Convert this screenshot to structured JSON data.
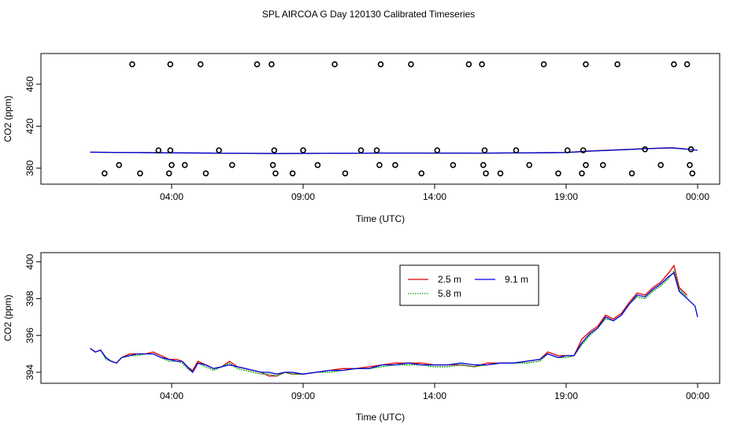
{
  "title": "SPL AIRCOA G  Day 120130  Calibrated Timeseries",
  "chart_data": [
    {
      "id": "top",
      "type": "scatter+line",
      "xlabel": "Time (UTC)",
      "ylabel": "CO2 (ppm)",
      "xlim": [
        0,
        24.5
      ],
      "ylim": [
        370,
        484
      ],
      "x_ticks": [
        {
          "value": 4,
          "label": "04:00"
        },
        {
          "value": 9,
          "label": "09:00"
        },
        {
          "value": 14,
          "label": "14:00"
        },
        {
          "value": 19,
          "label": "19:00"
        },
        {
          "value": 24,
          "label": "00:00"
        }
      ],
      "y_ticks": [
        {
          "value": 380,
          "label": "380"
        },
        {
          "value": 420,
          "label": "420"
        },
        {
          "value": 460,
          "label": "460"
        }
      ],
      "markers": {
        "name": "calibration points",
        "color": "#000000",
        "points": [
          [
            1.45,
            375
          ],
          [
            2.0,
            383
          ],
          [
            2.5,
            479
          ],
          [
            2.8,
            375
          ],
          [
            3.5,
            397
          ],
          [
            3.9,
            375
          ],
          [
            3.95,
            397
          ],
          [
            3.95,
            479
          ],
          [
            4.0,
            383
          ],
          [
            4.5,
            383
          ],
          [
            5.1,
            479
          ],
          [
            5.3,
            375
          ],
          [
            5.8,
            397
          ],
          [
            6.3,
            383
          ],
          [
            7.25,
            479
          ],
          [
            7.8,
            479
          ],
          [
            7.85,
            383
          ],
          [
            7.9,
            397
          ],
          [
            7.95,
            375
          ],
          [
            8.6,
            375
          ],
          [
            9.0,
            397
          ],
          [
            9.55,
            383
          ],
          [
            10.2,
            479
          ],
          [
            10.6,
            375
          ],
          [
            11.2,
            397
          ],
          [
            11.8,
            397
          ],
          [
            11.9,
            383
          ],
          [
            11.95,
            479
          ],
          [
            12.5,
            383
          ],
          [
            13.1,
            479
          ],
          [
            13.5,
            375
          ],
          [
            14.1,
            397
          ],
          [
            14.7,
            383
          ],
          [
            15.3,
            479
          ],
          [
            15.8,
            479
          ],
          [
            15.85,
            383
          ],
          [
            15.9,
            397
          ],
          [
            15.95,
            375
          ],
          [
            16.5,
            375
          ],
          [
            17.1,
            397
          ],
          [
            17.6,
            383
          ],
          [
            18.15,
            479
          ],
          [
            18.7,
            375
          ],
          [
            19.05,
            397
          ],
          [
            19.6,
            375
          ],
          [
            19.65,
            397
          ],
          [
            19.75,
            383
          ],
          [
            19.75,
            479
          ],
          [
            20.4,
            383
          ],
          [
            20.95,
            479
          ],
          [
            21.5,
            375
          ],
          [
            22.0,
            398
          ],
          [
            22.6,
            383
          ],
          [
            23.1,
            479
          ],
          [
            23.6,
            479
          ],
          [
            23.7,
            383
          ],
          [
            23.75,
            398
          ],
          [
            23.8,
            375
          ]
        ]
      },
      "series": [
        {
          "name": "2.5 m",
          "color": "#e00000",
          "x": [
            0.9,
            4,
            6,
            8,
            9,
            12,
            16,
            19,
            20,
            21,
            22,
            23,
            23.6
          ],
          "y": [
            395.2,
            394.6,
            394.2,
            393.9,
            394.0,
            394.4,
            394.3,
            394.9,
            396.5,
            397.5,
            398.6,
            399.5,
            398.2
          ]
        },
        {
          "name": "5.8 m",
          "color": "#00a000",
          "x": [
            0.9,
            4,
            6,
            8,
            9,
            12,
            16,
            19,
            20,
            21,
            22,
            23,
            23.6
          ],
          "y": [
            395.2,
            394.6,
            394.2,
            393.9,
            394.0,
            394.4,
            394.3,
            394.9,
            396.3,
            397.4,
            398.5,
            399.3,
            398.0
          ]
        },
        {
          "name": "9.1 m",
          "color": "#0000e0",
          "x": [
            0.9,
            4,
            6,
            8,
            9,
            12,
            16,
            19,
            20,
            21,
            22,
            23,
            23.6,
            24
          ],
          "y": [
            395.2,
            394.6,
            394.3,
            394.0,
            394.1,
            394.4,
            394.4,
            394.9,
            396.3,
            397.4,
            398.5,
            399.3,
            398.1,
            397.0
          ]
        }
      ]
    },
    {
      "id": "bottom",
      "type": "line",
      "xlabel": "Time (UTC)",
      "ylabel": "CO2 (ppm)",
      "xlim": [
        0,
        24.5
      ],
      "ylim": [
        393.7,
        400.2
      ],
      "x_ticks": [
        {
          "value": 4,
          "label": "04:00"
        },
        {
          "value": 9,
          "label": "09:00"
        },
        {
          "value": 14,
          "label": "14:00"
        },
        {
          "value": 19,
          "label": "19:00"
        },
        {
          "value": 24,
          "label": "00:00"
        }
      ],
      "y_ticks": [
        {
          "value": 394,
          "label": "394"
        },
        {
          "value": 396,
          "label": "396"
        },
        {
          "value": 398,
          "label": "398"
        },
        {
          "value": 400,
          "label": "400"
        }
      ],
      "legend": {
        "placement": "top-right",
        "entries": [
          {
            "label": "2.5 m",
            "color": "#e00000",
            "style": "solid"
          },
          {
            "label": "9.1 m",
            "color": "#0000e0",
            "style": "solid"
          },
          {
            "label": "5.8 m",
            "color": "#00a000",
            "style": "dotted"
          }
        ]
      },
      "series": [
        {
          "name": "2.5 m",
          "color": "#e00000",
          "x": [
            0.9,
            1.1,
            1.3,
            1.5,
            1.7,
            1.9,
            2.1,
            2.4,
            2.7,
            3.0,
            3.3,
            3.6,
            3.9,
            4.2,
            4.4,
            4.6,
            4.8,
            5.0,
            5.3,
            5.6,
            5.9,
            6.2,
            6.5,
            6.8,
            7.1,
            7.4,
            7.7,
            8.0,
            8.3,
            8.6,
            9.0,
            9.5,
            10.0,
            10.5,
            11.0,
            11.5,
            12.0,
            12.5,
            13.0,
            13.5,
            14.0,
            14.5,
            15.0,
            15.5,
            16.0,
            16.5,
            17.0,
            17.5,
            18.0,
            18.3,
            18.7,
            19.0,
            19.3,
            19.6,
            19.9,
            20.2,
            20.5,
            20.8,
            21.1,
            21.4,
            21.7,
            22.0,
            22.3,
            22.6,
            22.9,
            23.1,
            23.3,
            23.6
          ],
          "y": [
            395.3,
            395.1,
            395.2,
            394.8,
            394.6,
            394.5,
            394.8,
            395.0,
            395.0,
            395.0,
            395.1,
            394.9,
            394.7,
            394.7,
            394.6,
            394.3,
            394.1,
            394.6,
            394.4,
            394.2,
            394.3,
            394.6,
            394.3,
            394.2,
            394.1,
            394.0,
            393.8,
            393.8,
            394.0,
            393.9,
            393.9,
            394.0,
            394.1,
            394.2,
            394.2,
            394.3,
            394.4,
            394.5,
            394.5,
            394.5,
            394.4,
            394.4,
            394.4,
            394.3,
            394.5,
            394.5,
            394.5,
            394.6,
            394.7,
            395.1,
            394.9,
            394.9,
            394.9,
            395.8,
            396.2,
            396.5,
            397.1,
            396.9,
            397.2,
            397.8,
            398.3,
            398.2,
            398.6,
            398.9,
            399.4,
            399.8,
            398.6,
            398.2
          ]
        },
        {
          "name": "5.8 m",
          "color": "#00a000",
          "x": [
            0.9,
            1.1,
            1.3,
            1.5,
            1.7,
            1.9,
            2.1,
            2.4,
            2.7,
            3.0,
            3.3,
            3.6,
            3.9,
            4.2,
            4.4,
            4.6,
            4.8,
            5.0,
            5.3,
            5.6,
            5.9,
            6.2,
            6.5,
            6.8,
            7.1,
            7.4,
            7.7,
            8.0,
            8.3,
            8.6,
            9.0,
            9.5,
            10.0,
            10.5,
            11.0,
            11.5,
            12.0,
            12.5,
            13.0,
            13.5,
            14.0,
            14.5,
            15.0,
            15.5,
            16.0,
            16.5,
            17.0,
            17.5,
            18.0,
            18.3,
            18.7,
            19.0,
            19.3,
            19.6,
            19.9,
            20.2,
            20.5,
            20.8,
            21.1,
            21.4,
            21.7,
            22.0,
            22.3,
            22.6,
            22.9,
            23.1,
            23.3,
            23.6
          ],
          "y": [
            395.3,
            395.1,
            395.2,
            394.7,
            394.6,
            394.5,
            394.8,
            394.9,
            394.9,
            395.0,
            395.0,
            394.8,
            394.6,
            394.6,
            394.5,
            394.2,
            394.0,
            394.5,
            394.3,
            394.1,
            394.3,
            394.5,
            394.2,
            394.1,
            394.0,
            393.9,
            393.9,
            393.8,
            394.0,
            393.9,
            393.9,
            394.0,
            394.0,
            394.1,
            394.2,
            394.2,
            394.3,
            394.4,
            394.4,
            394.4,
            394.3,
            394.3,
            394.4,
            394.3,
            394.4,
            394.5,
            394.5,
            394.5,
            394.6,
            395.0,
            394.8,
            394.8,
            394.9,
            395.5,
            396.0,
            396.4,
            396.9,
            396.8,
            397.1,
            397.7,
            398.1,
            398.0,
            398.4,
            398.7,
            399.1,
            399.5,
            398.5,
            398.1
          ]
        },
        {
          "name": "9.1 m",
          "color": "#0000e0",
          "x": [
            0.9,
            1.1,
            1.3,
            1.5,
            1.7,
            1.9,
            2.1,
            2.4,
            2.7,
            3.0,
            3.3,
            3.6,
            3.9,
            4.2,
            4.4,
            4.6,
            4.8,
            5.0,
            5.3,
            5.6,
            5.9,
            6.2,
            6.5,
            6.8,
            7.1,
            7.4,
            7.7,
            8.0,
            8.3,
            8.6,
            9.0,
            9.5,
            10.0,
            10.5,
            11.0,
            11.5,
            12.0,
            12.5,
            13.0,
            13.5,
            14.0,
            14.5,
            15.0,
            15.5,
            16.0,
            16.5,
            17.0,
            17.5,
            18.0,
            18.3,
            18.7,
            19.0,
            19.3,
            19.6,
            19.9,
            20.2,
            20.5,
            20.8,
            21.1,
            21.4,
            21.7,
            22.0,
            22.3,
            22.6,
            22.9,
            23.1,
            23.3,
            23.6,
            23.9,
            24.0
          ],
          "y": [
            395.3,
            395.1,
            395.2,
            394.8,
            394.6,
            394.5,
            394.8,
            394.9,
            395.0,
            395.0,
            395.0,
            394.8,
            394.7,
            394.6,
            394.6,
            394.3,
            394.0,
            394.5,
            394.4,
            394.2,
            394.3,
            394.4,
            394.3,
            394.2,
            394.1,
            394.0,
            394.0,
            393.9,
            394.0,
            394.0,
            393.9,
            394.0,
            394.1,
            394.1,
            394.2,
            394.2,
            394.4,
            394.4,
            394.5,
            394.4,
            394.4,
            394.4,
            394.5,
            394.4,
            394.4,
            394.5,
            394.5,
            394.6,
            394.7,
            395.0,
            394.8,
            394.9,
            394.9,
            395.6,
            396.1,
            396.4,
            397.0,
            396.8,
            397.1,
            397.7,
            398.2,
            398.1,
            398.5,
            398.8,
            399.2,
            399.4,
            398.4,
            398.0,
            397.6,
            397.0
          ]
        }
      ]
    }
  ]
}
